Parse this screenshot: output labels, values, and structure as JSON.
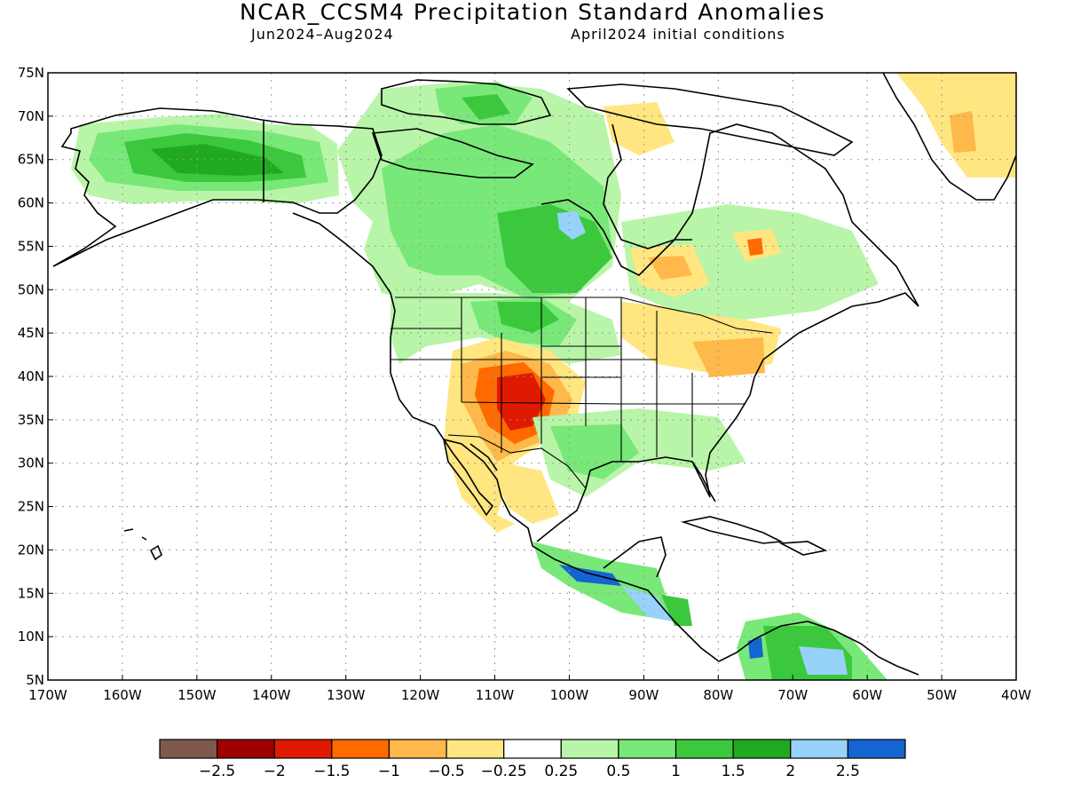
{
  "title": "NCAR_CCSM4 Precipitation Standard Anomalies",
  "subtitle_period": "Jun2024–Aug2024",
  "subtitle_ic": "April2024 initial conditions",
  "map": {
    "lon_range": [
      -170,
      -40
    ],
    "lat_range": [
      5,
      75
    ],
    "grid": true,
    "lat_ticks": [
      "5N",
      "10N",
      "15N",
      "20N",
      "25N",
      "30N",
      "35N",
      "40N",
      "45N",
      "50N",
      "55N",
      "60N",
      "65N",
      "70N",
      "75N"
    ],
    "lon_ticks": [
      "170W",
      "160W",
      "150W",
      "140W",
      "130W",
      "120W",
      "110W",
      "100W",
      "90W",
      "80W",
      "70W",
      "60W",
      "50W",
      "40W"
    ]
  },
  "legend": {
    "colors": [
      "#7f5a4c",
      "#a00000",
      "#e01a00",
      "#ff6a00",
      "#ffb84a",
      "#ffe680",
      "#ffffff",
      "#b8f5a8",
      "#78e878",
      "#3cc83c",
      "#20aa20",
      "#96d2fa",
      "#1464d2"
    ],
    "labels": [
      "−2.5",
      "−2",
      "−1.5",
      "−1",
      "−0.5",
      "−0.25",
      "0.25",
      "0.5",
      "1",
      "1.5",
      "2",
      "2.5"
    ]
  },
  "colors": {
    "green_light": "#b8f5a8",
    "green": "#78e878",
    "green_mid": "#3cc83c",
    "green_dark": "#20aa20",
    "yellow": "#ffe680",
    "orange_light": "#ffb84a",
    "orange": "#ff6a00",
    "red": "#e01a00",
    "blue_light": "#96d2fa",
    "blue": "#1464d2"
  }
}
